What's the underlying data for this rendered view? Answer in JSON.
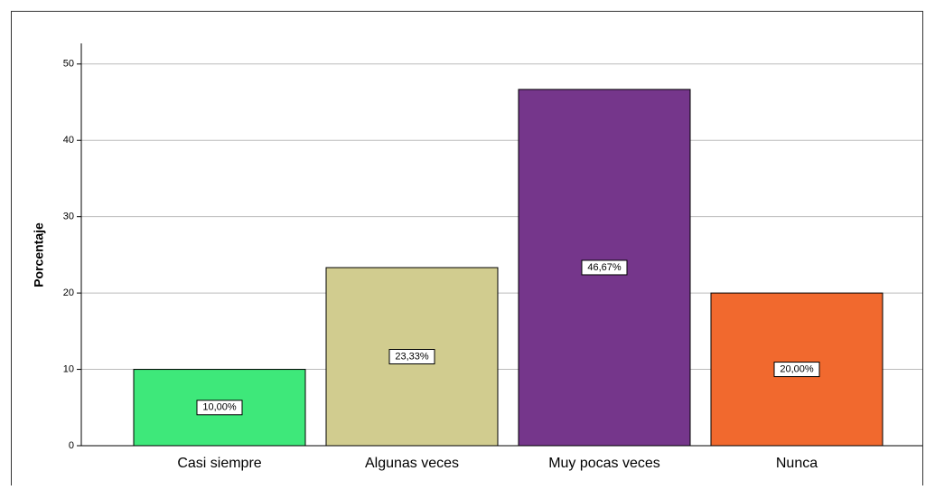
{
  "chart_data": {
    "type": "bar",
    "y_label": "Porcentaje",
    "categories": [
      "Casi siempre",
      "Algunas veces",
      "Muy pocas veces",
      "Nunca"
    ],
    "values": [
      10,
      23.33,
      46.67,
      20
    ],
    "value_labels": [
      "10,00%",
      "23,33%",
      "46,67%",
      "20,00%"
    ],
    "colors": [
      "#3ee87a",
      "#d1cc8f",
      "#75368b",
      "#f1692e"
    ],
    "ylim": [
      0,
      52.7
    ],
    "yticks": [
      0,
      10,
      20,
      30,
      40,
      50
    ],
    "grid": true
  }
}
